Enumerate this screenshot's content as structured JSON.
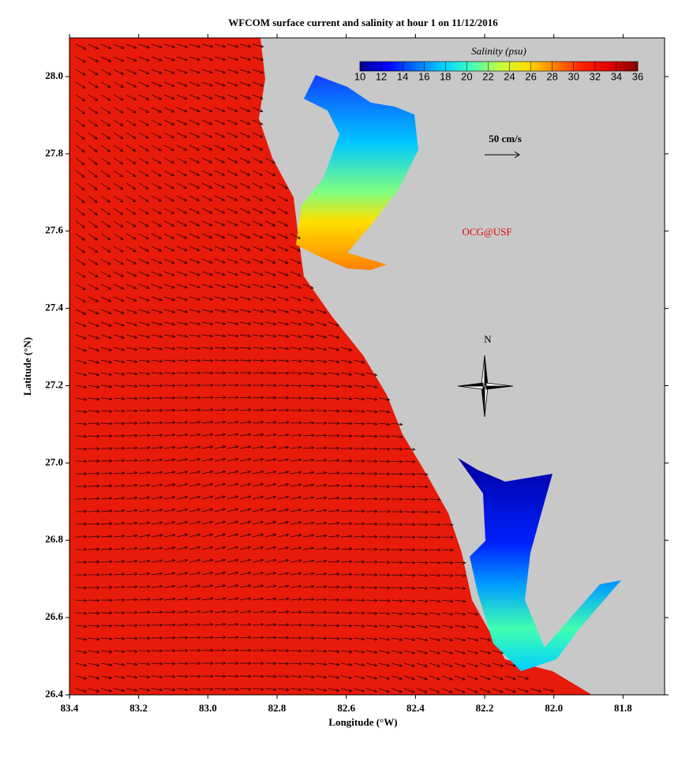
{
  "chart_data": {
    "type": "map",
    "title": "WFCOM surface current and salinity at hour 1 on 11/12/2016",
    "x_label": "Longitude (°W)",
    "y_label": "Latitude (°N)",
    "xlim": [
      83.4,
      81.68
    ],
    "ylim": [
      26.4,
      28.1
    ],
    "xticks": [
      {
        "value": 83.4,
        "label": "83.4"
      },
      {
        "value": 83.2,
        "label": "83.2"
      },
      {
        "value": 83.0,
        "label": "83.0"
      },
      {
        "value": 82.8,
        "label": "82.8"
      },
      {
        "value": 82.6,
        "label": "82.6"
      },
      {
        "value": 82.4,
        "label": "82.4"
      },
      {
        "value": 82.2,
        "label": "82.2"
      },
      {
        "value": 82.0,
        "label": "82.0"
      },
      {
        "value": 81.8,
        "label": "81.8"
      }
    ],
    "yticks": [
      {
        "value": 26.4,
        "label": "26.4"
      },
      {
        "value": 26.6,
        "label": "26.6"
      },
      {
        "value": 26.8,
        "label": "26.8"
      },
      {
        "value": 27.0,
        "label": "27.0"
      },
      {
        "value": 27.2,
        "label": "27.2"
      },
      {
        "value": 27.4,
        "label": "27.4"
      },
      {
        "value": 27.6,
        "label": "27.6"
      },
      {
        "value": 27.8,
        "label": "27.8"
      },
      {
        "value": 28.0,
        "label": "28.0"
      }
    ],
    "colorbar": {
      "label": "Salinity (psu)",
      "lim": [
        10,
        36
      ],
      "ticks": [
        10,
        12,
        14,
        16,
        18,
        20,
        22,
        24,
        26,
        28,
        30,
        32,
        34,
        36
      ],
      "colormap": [
        "#00008f",
        "#0000ff",
        "#0070ff",
        "#00d0ff",
        "#40ffc0",
        "#c0ff40",
        "#ffe000",
        "#ff8000",
        "#ff2000",
        "#e00000",
        "#800000"
      ]
    },
    "sea_color": "#e81a0a",
    "land_color": "#c8c8c8",
    "scale_label": "50 cm/s",
    "credit": "OCG@USF",
    "north_label": "N"
  }
}
